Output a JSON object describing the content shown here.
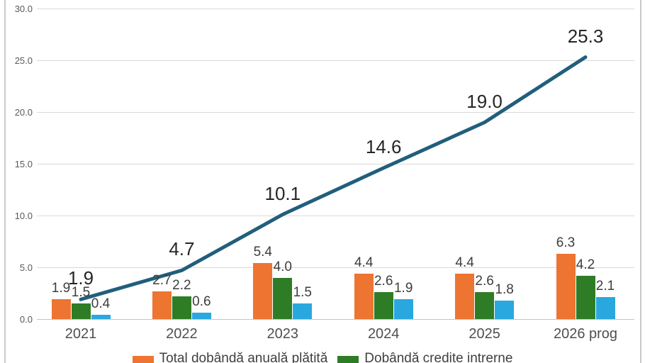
{
  "chart_data": {
    "type": "combo-bar-line",
    "title": "",
    "categories": [
      "2021",
      "2022",
      "2023",
      "2024",
      "2025",
      "2026 prog"
    ],
    "series": [
      {
        "name": "Total dobândă anuală plătită",
        "type": "bar",
        "color": "#ED7431",
        "values": [
          "1.9",
          "2.7",
          "5.4",
          "4.4",
          "4.4",
          "6.3"
        ]
      },
      {
        "name": "Dobândă credite intrerne",
        "type": "bar",
        "color": "#2E7D26",
        "values": [
          "1.5",
          "2.2",
          "4.0",
          "2.6",
          "2.6",
          "4.2"
        ]
      },
      {
        "name": "",
        "type": "bar",
        "color": "#29A8E0",
        "values": [
          "0.4",
          "0.6",
          "1.5",
          "1.9",
          "1.8",
          "2.1"
        ]
      },
      {
        "name": "",
        "type": "line",
        "color": "#215E7C",
        "values": [
          "1.9",
          "4.7",
          "10.1",
          "14.6",
          "19.0",
          "25.3"
        ]
      }
    ],
    "y_axis": {
      "ticks": [
        "30.0",
        "25.0",
        "20.0",
        "15.0",
        "10.0",
        "5.0",
        "0.0"
      ],
      "min": 0,
      "max": 30
    },
    "legend": {
      "position": "bottom",
      "items": [
        "Total dobândă anuală plătită",
        "Dobândă credite intrerne"
      ]
    }
  }
}
